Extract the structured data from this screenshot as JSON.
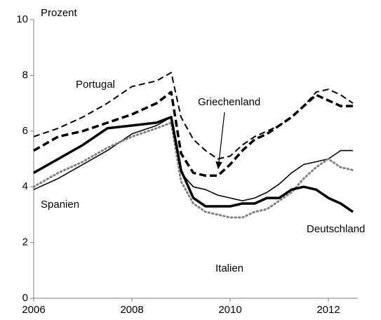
{
  "chart_data": {
    "type": "line",
    "y_label": "Prozent",
    "x": [
      2006,
      2006.5,
      2007,
      2007.5,
      2008,
      2008.5,
      2008.8,
      2009,
      2009.25,
      2009.5,
      2009.75,
      2010,
      2010.25,
      2010.5,
      2010.75,
      2011,
      2011.25,
      2011.5,
      2011.75,
      2012,
      2012.25,
      2012.5
    ],
    "series": [
      {
        "name": "Portugal",
        "color": "#000000",
        "line_style": "dashed",
        "values": [
          5.8,
          6.1,
          6.5,
          7.0,
          7.6,
          7.8,
          8.1,
          6.5,
          5.7,
          5.3,
          5.0,
          5.1,
          5.5,
          5.8,
          6.0,
          6.2,
          6.5,
          6.9,
          7.4,
          7.5,
          7.3,
          7.0
        ]
      },
      {
        "name": "Griechenland",
        "color": "#000000",
        "line_style": "dashed-thick",
        "values": [
          5.3,
          5.8,
          6.0,
          6.3,
          6.6,
          7.0,
          7.4,
          5.2,
          4.5,
          4.4,
          4.4,
          4.8,
          5.3,
          5.7,
          5.9,
          6.2,
          6.5,
          6.9,
          7.3,
          7.1,
          6.9,
          6.9
        ]
      },
      {
        "name": "Spanien",
        "color": "#000000",
        "line_style": "solid",
        "values": [
          3.9,
          4.3,
          4.8,
          5.3,
          5.9,
          6.2,
          6.5,
          4.5,
          4.0,
          3.9,
          3.7,
          3.6,
          3.5,
          3.6,
          3.8,
          4.1,
          4.5,
          4.8,
          4.9,
          5.0,
          5.3,
          5.3
        ]
      },
      {
        "name": "Italien",
        "color": "#7f7f7f",
        "line_style": "dotted",
        "values": [
          4.0,
          4.5,
          4.9,
          5.4,
          5.8,
          6.1,
          6.3,
          4.2,
          3.4,
          3.1,
          3.0,
          2.9,
          2.9,
          3.1,
          3.2,
          3.5,
          3.8,
          4.3,
          4.7,
          5.0,
          4.7,
          4.6
        ]
      },
      {
        "name": "Deutschland",
        "color": "#000000",
        "line_style": "solid-thick",
        "values": [
          4.5,
          5.0,
          5.5,
          6.1,
          6.2,
          6.3,
          6.5,
          4.6,
          3.6,
          3.3,
          3.3,
          3.3,
          3.4,
          3.4,
          3.6,
          3.6,
          3.9,
          4.0,
          3.9,
          3.6,
          3.4,
          3.1
        ]
      }
    ],
    "xlim": [
      2006,
      2012.6
    ],
    "xticks": [
      2006,
      2008,
      2010,
      2012
    ],
    "ylim": [
      0,
      10
    ],
    "yticks": [
      0,
      2,
      4,
      6,
      8,
      10
    ],
    "grid": false
  }
}
